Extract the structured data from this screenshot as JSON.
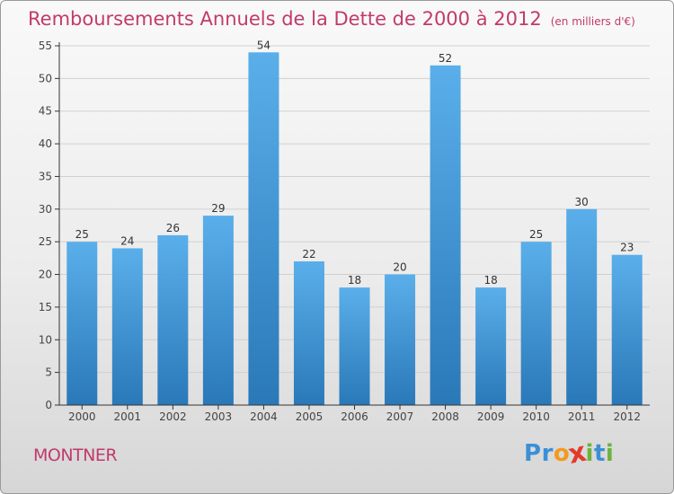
{
  "title": "Remboursements Annuels de la Dette de 2000 à 2012",
  "unit": "(en milliers d'€)",
  "town": "MONTNER",
  "logo": {
    "letters": [
      "P",
      "r",
      "o",
      "x",
      "i",
      "t",
      "i"
    ]
  },
  "colors": {
    "title": "#c23a6b",
    "bar_top": "#5aafea",
    "bar_bottom": "#2a78b8",
    "axis": "#333333",
    "grid": "#d0d0d0",
    "logo": [
      "#3c8fd6",
      "#3c8fd6",
      "#f29a1f",
      "#e23b2a",
      "#6bb33d",
      "#3c8fd6",
      "#6bb33d"
    ]
  },
  "chart_data": {
    "type": "bar",
    "title": "Remboursements Annuels de la Dette de 2000 à 2012",
    "xlabel": "",
    "ylabel": "",
    "categories": [
      "2000",
      "2001",
      "2002",
      "2003",
      "2004",
      "2005",
      "2006",
      "2007",
      "2008",
      "2009",
      "2010",
      "2011",
      "2012"
    ],
    "values": [
      25,
      24,
      26,
      29,
      54,
      22,
      18,
      20,
      52,
      18,
      25,
      30,
      23
    ],
    "ylim": [
      0,
      55
    ],
    "yticks": [
      0,
      5,
      10,
      15,
      20,
      25,
      30,
      35,
      40,
      45,
      50,
      55
    ],
    "grid": true,
    "legend": "none"
  }
}
